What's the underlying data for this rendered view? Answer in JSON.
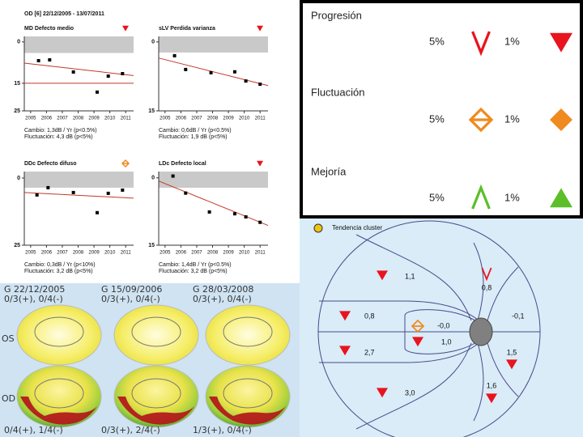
{
  "header": "OD [6] 22/12/2005 - 13/07/2011",
  "chart_data": [
    {
      "type": "scatter",
      "title": "MD Defecto medio",
      "status": "p1",
      "x": [
        2005.5,
        2006.2,
        2007.7,
        2009.2,
        2009.9,
        2010.8
      ],
      "values": [
        6.8,
        6.5,
        10.9,
        18.2,
        12.4,
        11.5
      ],
      "trend": [
        7.7,
        12.2
      ],
      "reference_line": 15,
      "normal_band": [
        -2,
        4
      ],
      "xlim": [
        2004.6,
        2011.5
      ],
      "ylim": [
        -2,
        25
      ],
      "xticks": [
        2005,
        2006,
        2007,
        2008,
        2009,
        2010,
        2011
      ],
      "yticks": [
        0,
        15,
        25
      ],
      "notes": [
        "Cambio: 1,3dB / Yr (p<0.5%)",
        "Fluctuación: 4,3 dB (p<5%)"
      ]
    },
    {
      "type": "scatter",
      "title": "sLV Perdida varianza",
      "status": "p1",
      "x": [
        2005.6,
        2006.3,
        2007.9,
        2009.4,
        2010.1,
        2011.0
      ],
      "values": [
        3.0,
        6.0,
        6.7,
        6.5,
        8.5,
        9.2
      ],
      "trend": [
        3.5,
        9.5
      ],
      "normal_band": [
        -1.2,
        2.3
      ],
      "xlim": [
        2004.6,
        2011.5
      ],
      "ylim": [
        -1.2,
        15
      ],
      "xticks": [
        2005,
        2006,
        2007,
        2008,
        2009,
        2010,
        2011
      ],
      "yticks": [
        0,
        15
      ],
      "notes": [
        "Cambio: 0,6dB / Yr (p<0.5%)",
        "Fluctuación: 1,9 dB (p<5%)"
      ]
    },
    {
      "type": "scatter",
      "title": "DDc Defecto difuso",
      "status": "f5",
      "x": [
        2005.4,
        2006.1,
        2007.7,
        2009.2,
        2009.9,
        2010.8
      ],
      "values": [
        6.3,
        3.6,
        5.4,
        12.9,
        5.7,
        4.5
      ],
      "trend": [
        5.4,
        7.5
      ],
      "normal_band": [
        -2.4,
        3.6
      ],
      "xlim": [
        2004.6,
        2011.5
      ],
      "ylim": [
        -2.4,
        25
      ],
      "xticks": [
        2005,
        2006,
        2007,
        2008,
        2009,
        2010,
        2011
      ],
      "yticks": [
        0,
        25
      ],
      "notes": [
        "Cambio: 0,3dB / Yr (p<10%)",
        "Fluctuación: 3,2 dB (p<5%)"
      ]
    },
    {
      "type": "scatter",
      "title": "LDc Defecto local",
      "status": "p1",
      "x": [
        2005.5,
        2006.3,
        2007.8,
        2009.4,
        2010.1,
        2011.0
      ],
      "values": [
        -0.4,
        3.4,
        7.6,
        8.0,
        8.7,
        9.9
      ],
      "trend": [
        0.7,
        10.6
      ],
      "normal_band": [
        -1.4,
        2.2
      ],
      "xlim": [
        2004.6,
        2011.5
      ],
      "ylim": [
        -1.4,
        15
      ],
      "xticks": [
        2005,
        2006,
        2007,
        2008,
        2009,
        2010,
        2011
      ],
      "yticks": [
        0,
        15
      ],
      "notes": [
        "Cambio: 1,4dB / Yr (p<0.5%)",
        "Fluctuación: 3,2 dB (p<5%)"
      ]
    }
  ],
  "visual_fields": {
    "row_labels": [
      "OS",
      "OD"
    ],
    "columns": [
      {
        "header": "G      22/12/2005",
        "os_summary": "0/3(+), 0/4(-)",
        "od_summary": "0/4(+), 1/4(-)"
      },
      {
        "header": "G      15/09/2006",
        "os_summary": "0/3(+), 0/4(-)",
        "od_summary": "0/3(+), 2/4(-)"
      },
      {
        "header": "G      28/03/2008",
        "os_summary": "0/3(+), 0/4(-)",
        "od_summary": "1/3(+), 0/4(-)"
      }
    ]
  },
  "legend": {
    "rows": [
      {
        "label": "Progresión",
        "levels": [
          "5%",
          "1%"
        ],
        "symbols": [
          "p5",
          "p1"
        ]
      },
      {
        "label": "Fluctuación",
        "levels": [
          "5%",
          "1%"
        ],
        "symbols": [
          "f5",
          "f1"
        ]
      },
      {
        "label": "Mejoría",
        "levels": [
          "5%",
          "1%"
        ],
        "symbols": [
          "i5",
          "i1"
        ]
      }
    ]
  },
  "cluster_map": {
    "title": "Tendencia cluster",
    "clusters": [
      {
        "label": "1,1",
        "symbol": "p1"
      },
      {
        "label": "0,8",
        "symbol": "p5"
      },
      {
        "label": "-0,1",
        "symbol": "none"
      },
      {
        "label": "0,8",
        "symbol": "p1"
      },
      {
        "label": "-0,0",
        "symbol": "f5"
      },
      {
        "label": "1,0",
        "symbol": "p1"
      },
      {
        "label": "2,7",
        "symbol": "p1"
      },
      {
        "label": "1,5",
        "symbol": "p1"
      },
      {
        "label": "1,6",
        "symbol": "p1"
      },
      {
        "label": "3,0",
        "symbol": "p1"
      }
    ]
  }
}
